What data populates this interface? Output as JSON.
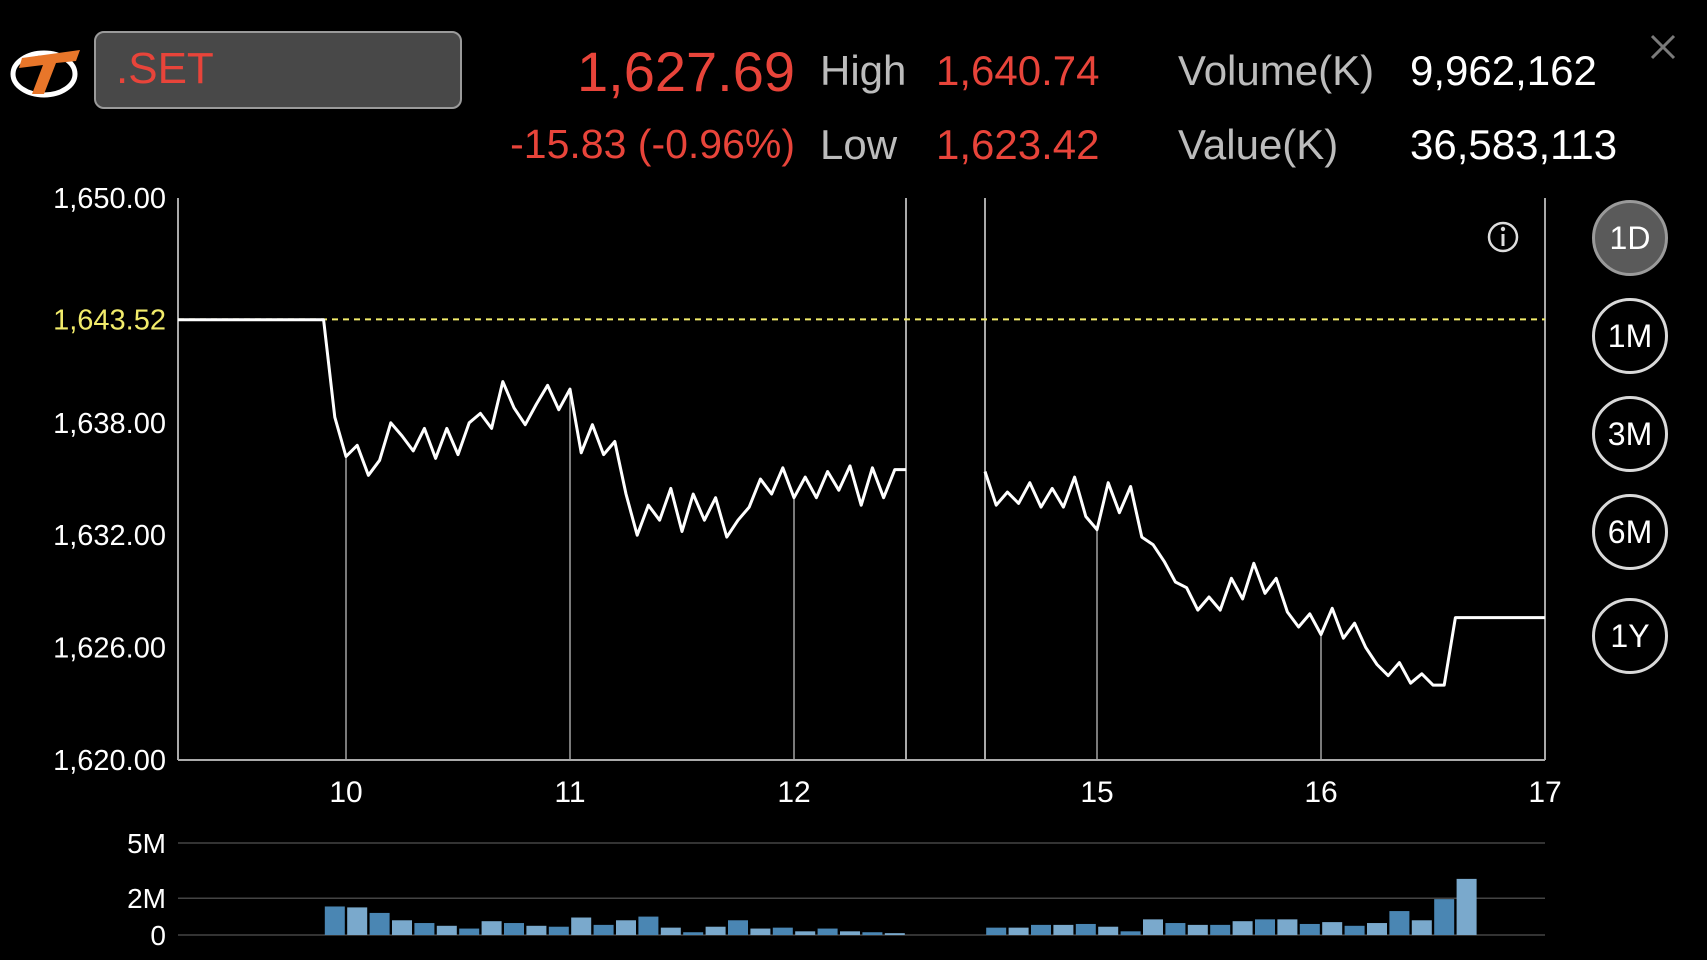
{
  "header": {
    "symbol": ".SET",
    "last": "1,627.69",
    "change": "-15.83 (-0.96%)",
    "high_label": "High",
    "high_value": "1,640.74",
    "low_label": "Low",
    "low_value": "1,623.42",
    "volume_label": "Volume(K)",
    "volume_value": "9,962,162",
    "value_label": "Value(K)",
    "value_value": "36,583,113"
  },
  "timeframes": [
    "1D",
    "1M",
    "3M",
    "6M",
    "1Y"
  ],
  "active_timeframe": "1D",
  "colors": {
    "accent_red": "#e8443a",
    "prev_close": "#f2ec6b",
    "volume_bar": "#4a86b3",
    "volume_bar_light": "#7aa9cc",
    "line": "#ffffff"
  },
  "chart_data": [
    {
      "type": "line",
      "x_ticks": [
        "10",
        "11",
        "12",
        "15",
        "16",
        "17"
      ],
      "y_ticks": [
        "1,650.00",
        "1,638.00",
        "1,632.00",
        "1,626.00",
        "1,620.00"
      ],
      "ylim": [
        1620,
        1650
      ],
      "reference_label": "1,643.52",
      "reference_value": 1643.52,
      "session_break": {
        "close_hour": 12.5,
        "open_hour": 14.5
      },
      "series": [
        {
          "x": [
            9.25,
            9.9,
            9.95,
            10.0,
            10.05,
            10.1,
            10.15,
            10.2,
            10.25,
            10.3,
            10.35,
            10.4,
            10.45,
            10.5,
            10.55,
            10.6,
            10.65,
            10.7,
            10.75,
            10.8,
            10.85,
            10.9,
            10.95,
            11.0,
            11.05,
            11.1,
            11.15,
            11.2,
            11.25,
            11.3,
            11.35,
            11.4,
            11.45,
            11.5,
            11.55,
            11.6,
            11.65,
            11.7,
            11.75,
            11.8,
            11.85,
            11.9,
            11.95,
            12.0,
            12.05,
            12.1,
            12.15,
            12.2,
            12.25,
            12.3,
            12.35,
            12.4,
            12.45,
            12.5
          ],
          "y": [
            1643.5,
            1643.5,
            1638.3,
            1636.2,
            1636.8,
            1635.2,
            1636.0,
            1638.0,
            1637.3,
            1636.5,
            1637.7,
            1636.1,
            1637.7,
            1636.3,
            1638.0,
            1638.5,
            1637.7,
            1640.2,
            1638.8,
            1637.9,
            1639.0,
            1640.0,
            1638.7,
            1639.8,
            1636.4,
            1637.9,
            1636.3,
            1637.0,
            1634.2,
            1632.0,
            1633.6,
            1632.8,
            1634.5,
            1632.2,
            1634.2,
            1632.8,
            1634.0,
            1631.9,
            1632.8,
            1633.5,
            1635.0,
            1634.2,
            1635.6,
            1634.0,
            1635.1,
            1634.0,
            1635.4,
            1634.4,
            1635.7,
            1633.6,
            1635.6,
            1634.0,
            1635.5,
            1635.5
          ]
        },
        {
          "x": [
            14.5,
            14.55,
            14.6,
            14.65,
            14.7,
            14.75,
            14.8,
            14.85,
            14.9,
            14.95,
            15.0,
            15.05,
            15.1,
            15.15,
            15.2,
            15.25,
            15.3,
            15.35,
            15.4,
            15.45,
            15.5,
            15.55,
            15.6,
            15.65,
            15.7,
            15.75,
            15.8,
            15.85,
            15.9,
            15.95,
            16.0,
            16.05,
            16.1,
            16.15,
            16.2,
            16.25,
            16.3,
            16.35,
            16.4,
            16.45,
            16.5,
            16.55,
            16.6,
            17.0
          ],
          "y": [
            1635.4,
            1633.6,
            1634.3,
            1633.7,
            1634.8,
            1633.5,
            1634.5,
            1633.5,
            1635.1,
            1633.0,
            1632.3,
            1634.8,
            1633.2,
            1634.6,
            1631.9,
            1631.5,
            1630.6,
            1629.5,
            1629.2,
            1628.0,
            1628.7,
            1628.0,
            1629.7,
            1628.6,
            1630.5,
            1628.9,
            1629.7,
            1627.9,
            1627.1,
            1627.8,
            1626.7,
            1628.1,
            1626.5,
            1627.3,
            1626.0,
            1625.1,
            1624.5,
            1625.2,
            1624.1,
            1624.6,
            1624.0,
            1624.0,
            1627.6,
            1627.6
          ]
        }
      ]
    },
    {
      "type": "bar",
      "y_ticks": [
        "5M",
        "2M",
        "0"
      ],
      "ylim": [
        0,
        5
      ],
      "series": [
        {
          "x": [
            9.95,
            10.05,
            10.15,
            10.25,
            10.35,
            10.45,
            10.55,
            10.65,
            10.75,
            10.85,
            10.95,
            11.05,
            11.15,
            11.25,
            11.35,
            11.45,
            11.55,
            11.65,
            11.75,
            11.85,
            11.95,
            12.05,
            12.15,
            12.25,
            12.35,
            12.45,
            14.55,
            14.65,
            14.75,
            14.85,
            14.95,
            15.05,
            15.15,
            15.25,
            15.35,
            15.45,
            15.55,
            15.65,
            15.75,
            15.85,
            15.95,
            16.05,
            16.15,
            16.25,
            16.35,
            16.45,
            16.55,
            16.65
          ],
          "values": [
            1.55,
            1.5,
            1.2,
            0.8,
            0.65,
            0.5,
            0.35,
            0.75,
            0.65,
            0.5,
            0.45,
            0.95,
            0.55,
            0.8,
            1.0,
            0.4,
            0.15,
            0.45,
            0.8,
            0.35,
            0.4,
            0.2,
            0.35,
            0.2,
            0.15,
            0.1,
            0.4,
            0.4,
            0.55,
            0.55,
            0.6,
            0.45,
            0.2,
            0.85,
            0.65,
            0.55,
            0.55,
            0.75,
            0.85,
            0.85,
            0.6,
            0.7,
            0.5,
            0.65,
            1.3,
            0.8,
            1.95,
            3.05
          ],
          "shade": [
            0,
            1,
            0,
            1,
            0,
            1,
            0,
            1,
            0,
            1,
            0,
            1,
            0,
            1,
            0,
            1,
            0,
            1,
            0,
            1,
            0,
            1,
            0,
            1,
            0,
            1,
            0,
            1,
            0,
            1,
            0,
            1,
            0,
            1,
            0,
            1,
            0,
            1,
            0,
            1,
            0,
            1,
            0,
            1,
            0,
            1,
            0,
            1
          ]
        }
      ]
    }
  ]
}
